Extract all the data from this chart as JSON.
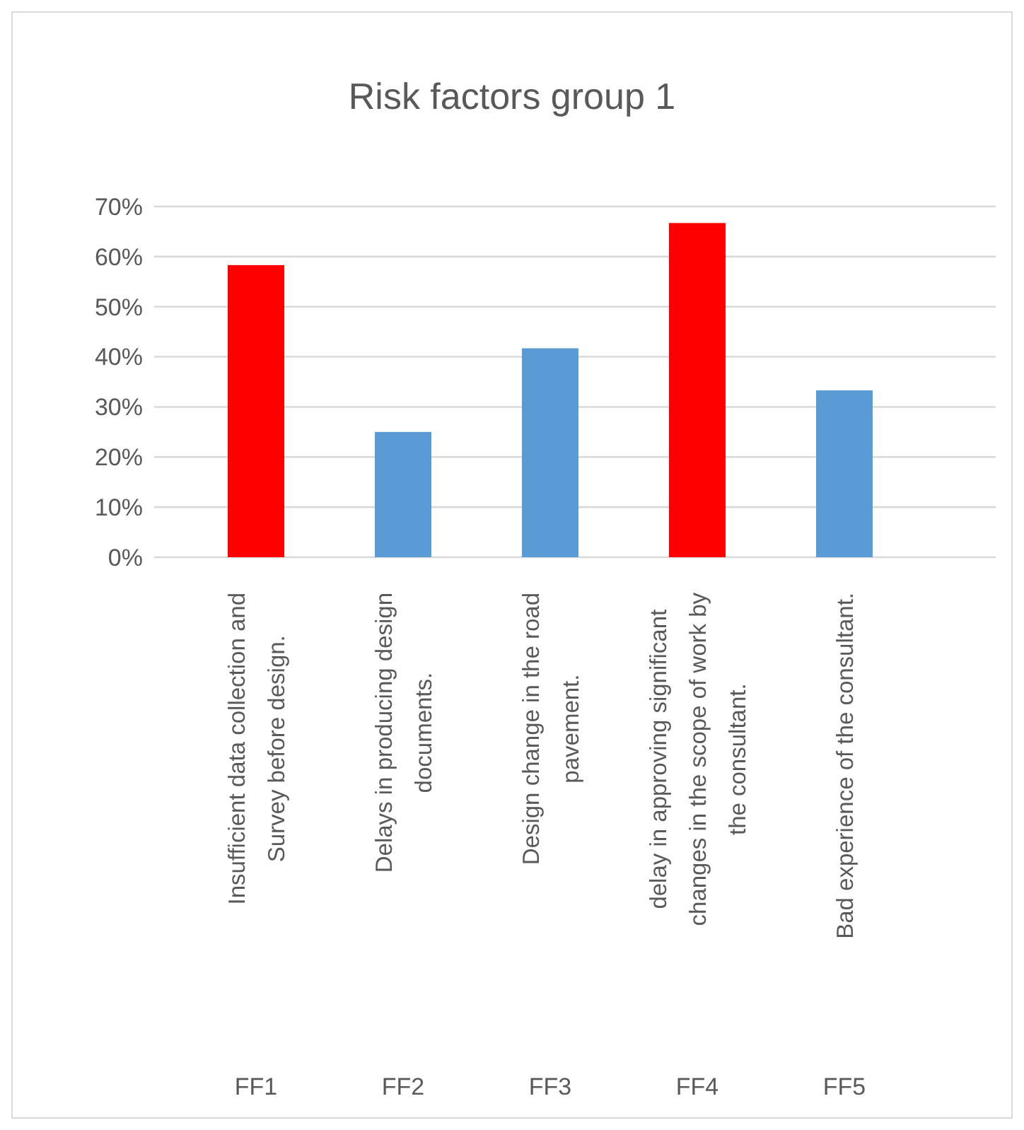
{
  "chart_data": {
    "type": "bar",
    "title": "Risk factors group 1",
    "categories": [
      "Insufficient data collection and Survey before design.",
      "Delays in producing design documents.",
      "Design change in the road pavement.",
      "delay in approving significant changes in the scope of work by the consultant.",
      "Bad experience of the consultant."
    ],
    "values": [
      58.3,
      25,
      41.7,
      66.7,
      33.3
    ],
    "colors": [
      "#ff0000",
      "#5b9bd5",
      "#5b9bd5",
      "#ff0000",
      "#5b9bd5"
    ],
    "annotations": [
      "FF1",
      "FF2",
      "FF3",
      "FF4",
      "FF5"
    ],
    "ylim": [
      0,
      70
    ],
    "yticks": [
      {
        "value": 0,
        "label": "0%"
      },
      {
        "value": 10,
        "label": "10%"
      },
      {
        "value": 20,
        "label": "20%"
      },
      {
        "value": 30,
        "label": "30%"
      },
      {
        "value": 40,
        "label": "40%"
      },
      {
        "value": 50,
        "label": "50%"
      },
      {
        "value": 60,
        "label": "60%"
      },
      {
        "value": 70,
        "label": "70%"
      }
    ],
    "grid": true
  }
}
